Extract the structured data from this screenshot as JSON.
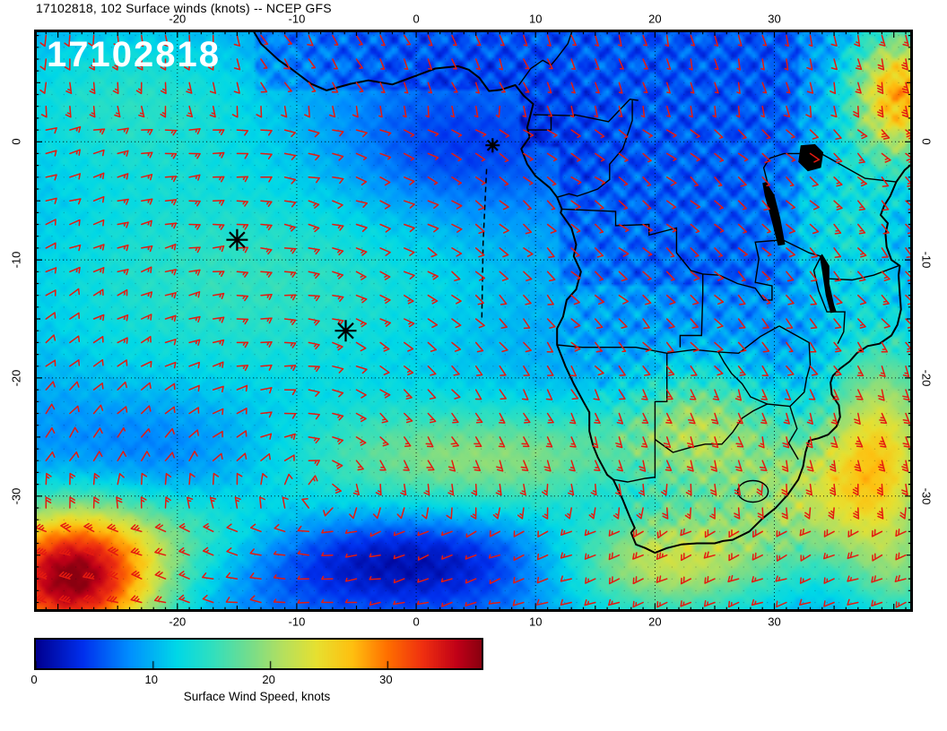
{
  "title": "17102818, 102 Surface winds (knots) -- NCEP GFS",
  "map_label": "17102818",
  "colorbar": {
    "title": "Surface Wind Speed, knots",
    "ticks": [
      0,
      10,
      20,
      30
    ],
    "min": 0,
    "max": 38,
    "stops": [
      {
        "v": 0,
        "c": "#000090"
      },
      {
        "v": 4,
        "c": "#0030ee"
      },
      {
        "v": 8,
        "c": "#0090ff"
      },
      {
        "v": 12,
        "c": "#00d8e8"
      },
      {
        "v": 15,
        "c": "#30e0c0"
      },
      {
        "v": 18,
        "c": "#70dd90"
      },
      {
        "v": 21,
        "c": "#b4e060"
      },
      {
        "v": 24,
        "c": "#e8e030"
      },
      {
        "v": 27,
        "c": "#ffc010"
      },
      {
        "v": 30,
        "c": "#ff7000"
      },
      {
        "v": 33,
        "c": "#f03010"
      },
      {
        "v": 36,
        "c": "#c00018"
      },
      {
        "v": 38,
        "c": "#8a0010"
      }
    ]
  },
  "chart_data": {
    "type": "heatmap",
    "title": "17102818, 102 Surface winds (knots) -- NCEP GFS",
    "model": "NCEP GFS",
    "run": "17102818",
    "forecast_hour": 102,
    "field": "Surface wind speed (knots) shading with wind barbs",
    "region": "South Atlantic Ocean and southern Africa",
    "axes": {
      "lon_range": [
        -32,
        41.6
      ],
      "lat_range": [
        9.5,
        -39.8
      ],
      "lon_ticks": [
        -20,
        -10,
        0,
        10,
        20,
        30
      ],
      "lat_ticks": [
        0,
        -10,
        -20,
        -30
      ],
      "grid": "dotted 10-degree graticule"
    },
    "colorbar_range": [
      0,
      38
    ],
    "markers": [
      {
        "lon": 6.4,
        "lat": -0.3,
        "size": 8
      },
      {
        "lon": -15.0,
        "lat": -8.3,
        "size": 12
      },
      {
        "lon": -5.9,
        "lat": -16.0,
        "size": 12
      }
    ],
    "track": [
      [
        5.9,
        -2.3
      ],
      [
        5.6,
        -8.6
      ],
      [
        5.5,
        -14.9
      ]
    ],
    "wind_barbs": {
      "grid_step_deg": 2,
      "color": "#e41a10",
      "high_center": [
        -8,
        -30
      ]
    },
    "field_model": {
      "base": 7.5,
      "blobs": [
        {
          "lon": -29,
          "lat": -37,
          "amp": 30,
          "sx": 5.5,
          "sy": 4.5
        },
        {
          "lon": -18,
          "lat": -33,
          "amp": 8,
          "sx": 7,
          "sy": 3.5
        },
        {
          "lon": 6,
          "lat": -27,
          "amp": 11,
          "sx": 14,
          "sy": 3.5
        },
        {
          "lon": 21,
          "lat": -35.5,
          "amp": 15,
          "sx": 7,
          "sy": 3.5
        },
        {
          "lon": 39,
          "lat": -26,
          "amp": 15,
          "sx": 3.5,
          "sy": 7
        },
        {
          "lon": 24,
          "lat": -23.5,
          "amp": 9,
          "sx": 4.5,
          "sy": 3.5
        },
        {
          "lon": -14,
          "lat": -12,
          "amp": 7.5,
          "sx": 16,
          "sy": 8
        },
        {
          "lon": -24,
          "lat": 4,
          "amp": 6,
          "sx": 9,
          "sy": 5
        },
        {
          "lon": -2,
          "lat": -35.5,
          "amp": -7,
          "sx": 11,
          "sy": 2.8
        },
        {
          "lon": 3,
          "lat": -1,
          "amp": -4.5,
          "sx": 7,
          "sy": 4
        },
        {
          "lon": -20,
          "lat": -28,
          "amp": -5,
          "sx": 8,
          "sy": 4
        },
        {
          "lon": 33,
          "lat": -30,
          "amp": 9,
          "sx": 5,
          "sy": 4
        },
        {
          "lon": 36,
          "lat": -7,
          "amp": 5,
          "sx": 4,
          "sy": 5
        },
        {
          "lon": 40.5,
          "lat": 4,
          "amp": 20,
          "sx": 3,
          "sy": 4
        },
        {
          "lon": 41,
          "lat": -37,
          "amp": 6,
          "sx": 3,
          "sy": 3
        },
        {
          "lon": 17,
          "lat": -30,
          "amp": -3,
          "sx": 4,
          "sy": 2.5
        }
      ]
    }
  }
}
